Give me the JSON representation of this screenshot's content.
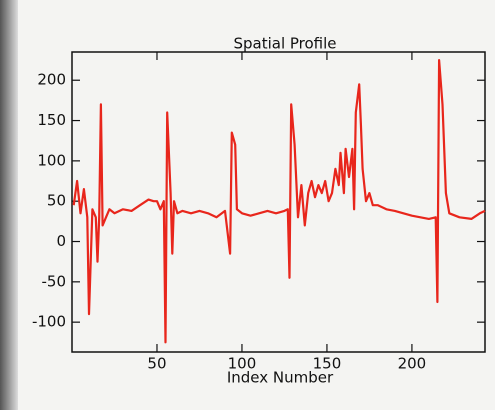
{
  "chart_data": {
    "type": "line",
    "title": "Spatial Profile",
    "x_label": "Index Number",
    "color": "#e8261c",
    "x": [
      1,
      3,
      5,
      7,
      9,
      10,
      12,
      14,
      15,
      16,
      17,
      18,
      20,
      22,
      25,
      30,
      35,
      40,
      45,
      48,
      50,
      52,
      54,
      55,
      56,
      58,
      59,
      60,
      62,
      65,
      70,
      75,
      80,
      85,
      90,
      93,
      94,
      96,
      97,
      100,
      105,
      110,
      115,
      120,
      125,
      127,
      128,
      129,
      131,
      133,
      135,
      137,
      139,
      141,
      143,
      145,
      147,
      149,
      151,
      153,
      155,
      157,
      158,
      160,
      161,
      163,
      165,
      166,
      167,
      169,
      170,
      171,
      173,
      175,
      177,
      180,
      185,
      190,
      195,
      200,
      205,
      210,
      214,
      215,
      216,
      218,
      220,
      222,
      228,
      235,
      240,
      243
    ],
    "values": [
      45,
      75,
      35,
      65,
      30,
      -90,
      40,
      30,
      -25,
      30,
      170,
      20,
      30,
      40,
      35,
      40,
      38,
      45,
      52,
      50,
      50,
      40,
      50,
      -125,
      160,
      60,
      -15,
      50,
      35,
      38,
      35,
      38,
      35,
      30,
      38,
      -15,
      135,
      120,
      40,
      35,
      32,
      35,
      38,
      35,
      38,
      40,
      -45,
      170,
      120,
      30,
      70,
      20,
      60,
      75,
      55,
      70,
      60,
      75,
      50,
      60,
      90,
      70,
      110,
      60,
      115,
      80,
      115,
      40,
      160,
      195,
      145,
      90,
      50,
      60,
      45,
      45,
      40,
      38,
      35,
      32,
      30,
      28,
      30,
      -75,
      225,
      170,
      60,
      35,
      30,
      28,
      35,
      38
    ],
    "xlim": [
      0,
      243
    ],
    "ylim": [
      -137,
      235
    ],
    "xticks": [
      50,
      100,
      150,
      200
    ],
    "yticks": [
      -100,
      -50,
      0,
      50,
      100,
      150,
      200
    ]
  }
}
